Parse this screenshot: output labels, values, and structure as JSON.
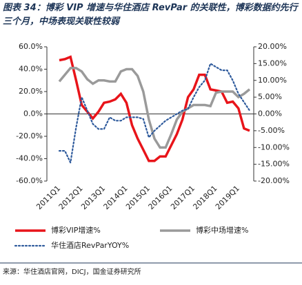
{
  "chart_data": {
    "type": "line",
    "title": "图表 34：博彩 VIP 增速与华住酒店 RevPar 的关联性，博彩数据约先行三个月，中场表现关联性较弱",
    "source": "来源：华住酒店官网，DICJ，国金证券研究所",
    "categories": [
      "2011Q1",
      null,
      null,
      null,
      "2012Q1",
      null,
      null,
      null,
      "2013Q1",
      null,
      null,
      null,
      "2014Q1",
      null,
      null,
      null,
      "2015Q1",
      null,
      null,
      null,
      "2016Q1",
      null,
      null,
      null,
      "2017Q1",
      null,
      null,
      null,
      "2018Q1",
      null,
      null,
      null,
      "2019Q1",
      null,
      null
    ],
    "series": [
      {
        "name": "博彩VIP增速%",
        "color": "#e8141a",
        "values": [
          48,
          49,
          51,
          30,
          8,
          2,
          -4,
          2,
          10,
          11,
          13,
          18,
          10,
          -10,
          -22,
          -32,
          -42,
          -42,
          -38,
          -38,
          -28,
          -18,
          -5,
          15,
          22,
          35,
          35,
          22,
          21,
          20,
          10,
          11,
          5,
          -13,
          -15
        ]
      },
      {
        "name": "博彩中场增速%",
        "color": "#9a9a9a",
        "values": [
          29,
          35,
          41,
          41,
          38,
          31,
          27,
          30,
          30,
          29,
          29,
          38,
          40,
          40,
          34,
          20,
          -5,
          -22,
          -30,
          -30,
          -18,
          -5,
          2,
          5,
          8,
          8,
          8,
          7,
          19,
          20,
          20,
          20,
          15,
          18,
          22
        ]
      },
      {
        "name": "华住酒店RevParYOY%",
        "color": "#2e5a9c",
        "axis": "y2",
        "values": [
          -11,
          -11,
          -14.5,
          -4,
          5,
          1,
          -3,
          -4.5,
          -4.5,
          -1,
          -2,
          -2,
          -1,
          -1,
          -1,
          -1.5,
          -7,
          -5,
          -3.5,
          -2,
          -1,
          0,
          1,
          1.5,
          5,
          8,
          10,
          15,
          14,
          13,
          13,
          10,
          6,
          3.5,
          1
        ]
      }
    ],
    "ylim": [
      -60,
      60
    ],
    "yticks": [
      {
        "value": -60,
        "label": "-60.0%"
      },
      {
        "value": -40,
        "label": "-40.0%"
      },
      {
        "value": -20,
        "label": "-20.0%"
      },
      {
        "value": 0,
        "label": "0.0%"
      },
      {
        "value": 20,
        "label": "20.0%"
      },
      {
        "value": 40,
        "label": "40.0%"
      },
      {
        "value": 60,
        "label": "60.0%"
      }
    ],
    "y2lim": [
      -20,
      20
    ],
    "y2ticks": [
      {
        "value": -20,
        "label": "-20.00%"
      },
      {
        "value": -15,
        "label": "-15.00%"
      },
      {
        "value": -10,
        "label": "-10.00%"
      },
      {
        "value": -5,
        "label": "-5.00%"
      },
      {
        "value": 0,
        "label": "0.00%"
      },
      {
        "value": 5,
        "label": "5.00%"
      },
      {
        "value": 10,
        "label": "10.00%"
      },
      {
        "value": 15,
        "label": "15.00%"
      },
      {
        "value": 20,
        "label": "20.00%"
      }
    ]
  }
}
